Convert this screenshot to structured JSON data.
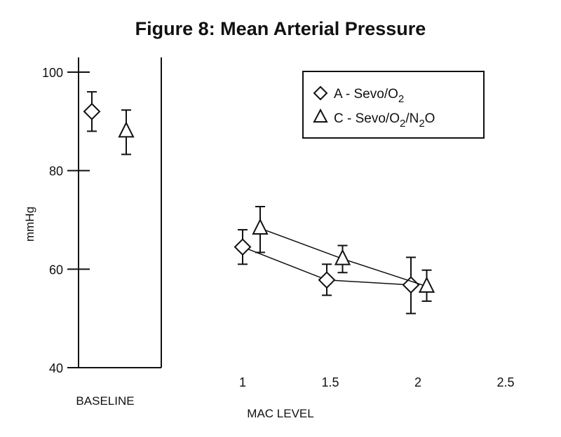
{
  "chart_data": {
    "type": "scatter",
    "title": "Figure 8: Mean Arterial Pressure",
    "ylabel": "mmHg",
    "xlabel": "MAC LEVEL",
    "baseline_label": "BASELINE",
    "ylim": [
      40,
      100
    ],
    "xlim": [
      0.5,
      2.5
    ],
    "yticks": [
      "100",
      "80",
      "60",
      "40"
    ],
    "ytick_values": [
      100,
      80,
      60,
      40
    ],
    "xticks": [
      "1",
      "1.5",
      "2",
      "2.5"
    ],
    "xtick_values": [
      1,
      1.5,
      2,
      2.5
    ],
    "grid": false,
    "legend_position": "top-right",
    "series": [
      {
        "name": "A - Sevo/O2",
        "legend_main": "A - Sevo/O",
        "legend_sub": "2",
        "marker": "diamond",
        "baseline": {
          "y": 92,
          "err_low": 88,
          "err_high": 96
        },
        "points": [
          {
            "x": 1.0,
            "y": 64.5,
            "err_low": 61,
            "err_high": 68
          },
          {
            "x": 1.48,
            "y": 57.8,
            "err_low": 54.7,
            "err_high": 61
          },
          {
            "x": 1.96,
            "y": 56.8,
            "err_low": 51,
            "err_high": 62.4
          }
        ]
      },
      {
        "name": "C - Sevo/O2/N2O",
        "legend_parts": [
          "C - Sevo/O",
          "2",
          "/N",
          "2",
          "O"
        ],
        "marker": "triangle",
        "baseline": {
          "y": 88,
          "err_low": 83.3,
          "err_high": 92.3
        },
        "points": [
          {
            "x": 1.1,
            "y": 68.3,
            "err_low": 63.4,
            "err_high": 72.7
          },
          {
            "x": 1.57,
            "y": 62.1,
            "err_low": 59.3,
            "err_high": 64.8
          },
          {
            "x": 2.05,
            "y": 56.5,
            "err_low": 53.5,
            "err_high": 59.8
          }
        ]
      }
    ]
  }
}
